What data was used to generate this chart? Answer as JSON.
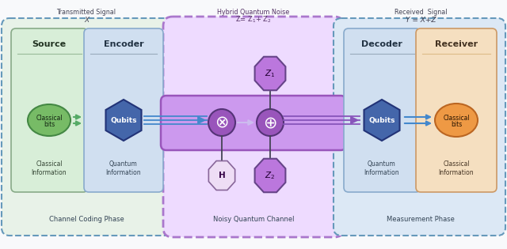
{
  "fig_bg": "#e0e4ea",
  "outer_bg": "#f8f9fb",
  "outer_border": "#8899aa",
  "left_label1": "Transmitted Signal",
  "left_label2": "X",
  "source_label": "Source",
  "encoder_label": "Encoder",
  "classical_info_l": "Classical\nInformation",
  "quantum_info_l": "Quantum\nInformation",
  "classical_bits_l": "Classical\nbits",
  "qubits_l": "Qubits",
  "channel_coding_label": "Channel Coding Phase",
  "mid_label1": "Hybrid Quantum Noise",
  "mid_label2": "Z= Z₁+ Z₂",
  "z1_label": "Z₁",
  "z2_label": "Z₂",
  "h_label": "H",
  "noisy_channel_label": "Noisy Quantum Channel",
  "right_label1": "Received  Signal",
  "right_label2": "Y = X+Z",
  "decoder_label": "Decoder",
  "receiver_label": "Receiver",
  "quantum_info_r": "Quantum\nInformation",
  "classical_info_r": "Classical\nInformation",
  "classical_bits_r": "Classical\nbits",
  "qubits_r": "Qubits",
  "measurement_label": "Measurement Phase",
  "source_bg": "#d8eed8",
  "source_border": "#88aa88",
  "encoder_bg": "#d0dff0",
  "encoder_border": "#88aacc",
  "decoder_bg": "#d0dff0",
  "decoder_border": "#88aacc",
  "receiver_bg": "#f5dfc0",
  "receiver_border": "#cc9966",
  "left_section_bg": "#e8f2e8",
  "left_section_border": "#6699bb",
  "right_section_bg": "#dce8f5",
  "right_section_border": "#6699bb",
  "mid_section_bg": "#eedbff",
  "mid_section_border": "#aa77cc",
  "mid_channel_bg": "#cc99ee",
  "mid_channel_border": "#9955bb",
  "classical_bits_l_color": "#77bb66",
  "classical_bits_l_border": "#448844",
  "classical_bits_r_color": "#ee9944",
  "classical_bits_r_border": "#bb6622",
  "qubits_color": "#4466aa",
  "qubits_border": "#223377",
  "z_oct_color": "#bb77dd",
  "z_oct_border": "#664488",
  "h_oct_color": "#eeddf5",
  "h_oct_border": "#886699",
  "circle_color": "#9955bb",
  "circle_border": "#553377",
  "arrow_blue": "#4488cc",
  "arrow_purple": "#8855bb",
  "arrow_green": "#55aa66",
  "line_color": "#444455"
}
